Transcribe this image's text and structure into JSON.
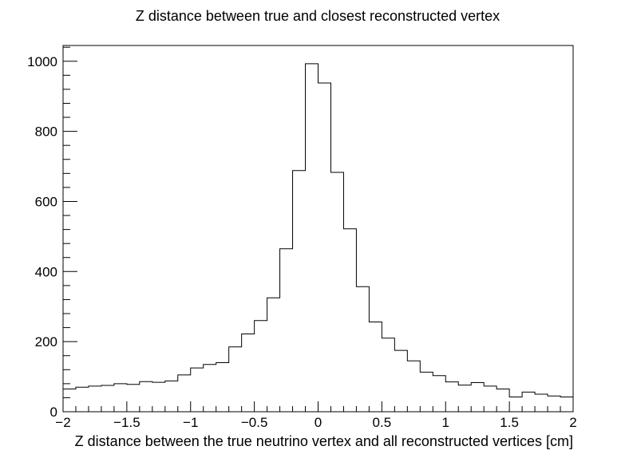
{
  "chart_data": {
    "type": "histogram",
    "title": "Z distance between true and closest reconstructed vertex",
    "xlabel": "Z distance between the true neutrino vertex and all reconstructed vertices [cm]",
    "ylabel": "",
    "xlim": [
      -2,
      2
    ],
    "ylim": [
      0,
      1045
    ],
    "x_ticks": [
      -2,
      -1.5,
      -1,
      -0.5,
      0,
      0.5,
      1,
      1.5,
      2
    ],
    "x_tick_labels": [
      "−2",
      "−1.5",
      "−1",
      "−0.5",
      "0",
      "0.5",
      "1",
      "1.5",
      "2"
    ],
    "y_ticks": [
      0,
      200,
      400,
      600,
      800,
      1000
    ],
    "y_tick_labels": [
      "0",
      "200",
      "400",
      "600",
      "800",
      "1000"
    ],
    "bin_edges_start": -2,
    "bin_width": 0.1,
    "values": [
      65,
      70,
      73,
      75,
      80,
      78,
      86,
      84,
      88,
      105,
      125,
      135,
      140,
      185,
      222,
      260,
      325,
      465,
      688,
      993,
      938,
      683,
      522,
      357,
      256,
      210,
      175,
      145,
      113,
      103,
      85,
      76,
      83,
      73,
      65,
      42,
      56,
      50,
      45,
      42
    ],
    "grid": false,
    "legend": "none",
    "line_color": "#000000"
  }
}
